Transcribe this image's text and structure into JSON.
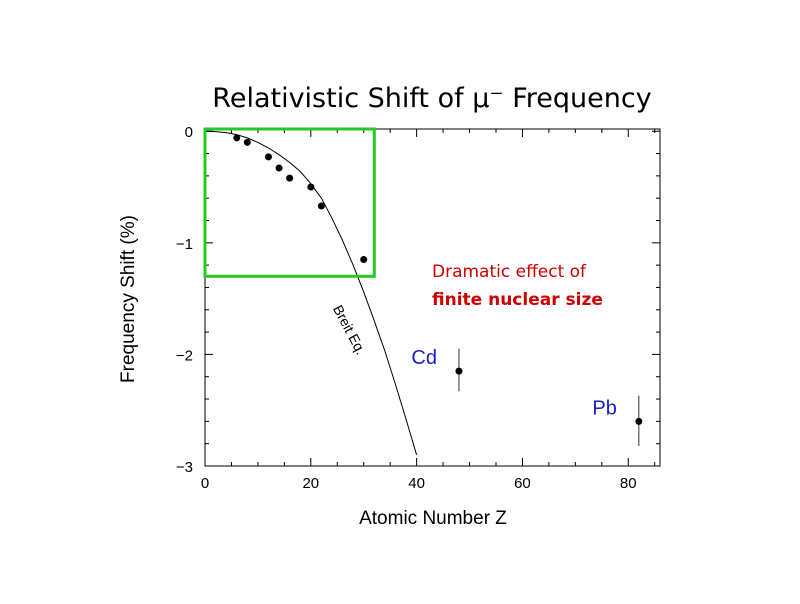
{
  "slide": {
    "title": "Relativistic Shift of μ⁻ Frequency",
    "annotation_line1": "Dramatic effect of",
    "annotation_line2": "finite nuclear size"
  },
  "colors": {
    "highlight_box": "#22cc22",
    "annotation": "#cc0000",
    "element_labels": "#1a1acc"
  },
  "chart_data": {
    "type": "scatter",
    "title": "Relativistic Shift of μ⁻ Frequency",
    "xlabel": "Atomic Number Z",
    "ylabel": "Frequency Shift (%)",
    "xlim": [
      0,
      86
    ],
    "ylim": [
      -3,
      0.02
    ],
    "x_ticks": [
      0,
      20,
      40,
      60,
      80
    ],
    "y_ticks": [
      0,
      -1,
      -2,
      -3
    ],
    "x_tick_labels": [
      "0",
      "20",
      "40",
      "60",
      "80"
    ],
    "y_tick_labels": [
      "0",
      "−1",
      "−2",
      "−3"
    ],
    "grid": false,
    "points": [
      {
        "x": 6,
        "y": -0.06
      },
      {
        "x": 8,
        "y": -0.1
      },
      {
        "x": 12,
        "y": -0.23
      },
      {
        "x": 14,
        "y": -0.33
      },
      {
        "x": 16,
        "y": -0.42
      },
      {
        "x": 20,
        "y": -0.5
      },
      {
        "x": 22,
        "y": -0.67
      },
      {
        "x": 30,
        "y": -1.15
      },
      {
        "x": 48,
        "y": -2.15,
        "err_lo": -2.33,
        "err_hi": -1.95,
        "label": "Cd"
      },
      {
        "x": 82,
        "y": -2.6,
        "err_lo": -2.82,
        "err_hi": -2.37,
        "label": "Pb"
      }
    ],
    "curve": {
      "label": "Breit Eq.",
      "x": [
        0,
        2,
        4,
        6,
        8,
        10,
        12,
        14,
        16,
        18,
        20,
        22,
        24,
        26,
        28,
        30,
        32,
        34,
        36,
        38,
        40
      ],
      "y": [
        0,
        -0.003,
        -0.012,
        -0.03,
        -0.06,
        -0.1,
        -0.15,
        -0.21,
        -0.28,
        -0.36,
        -0.47,
        -0.6,
        -0.78,
        -0.98,
        -1.2,
        -1.44,
        -1.7,
        -1.97,
        -2.27,
        -2.58,
        -2.9
      ]
    },
    "highlight_region": {
      "x": [
        0,
        32
      ],
      "y": [
        -1.3,
        0.02
      ]
    }
  }
}
